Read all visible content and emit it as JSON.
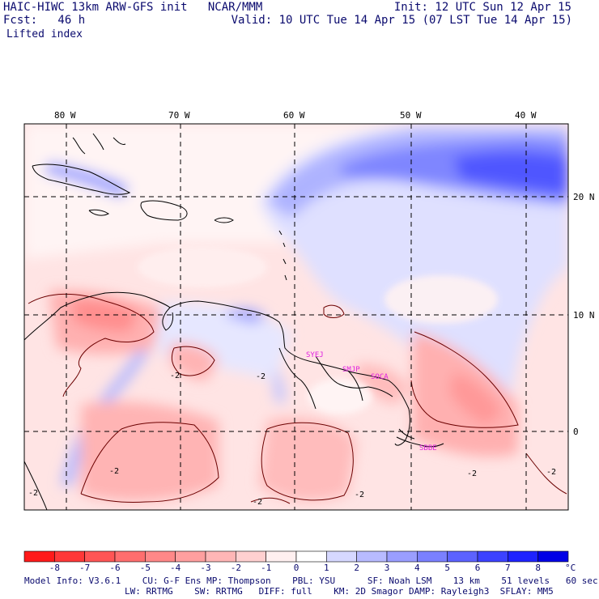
{
  "header": {
    "left_line1": "HAIC-HIWC 13km ARW-GFS init   NCAR/MMM",
    "left_line2": "Fcst:   46 h",
    "left_line3": "Lifted index",
    "right_line1": "Init: 12 UTC Sun 12 Apr 15",
    "right_line2": "Valid: 10 UTC Tue 14 Apr 15 (07 LST Tue 14 Apr 15)"
  },
  "map": {
    "lon_labels": [
      "80 W",
      "70 W",
      "60 W",
      "50 W",
      "40 W"
    ],
    "lat_labels": [
      "20 N",
      "10 N",
      "0"
    ],
    "station_labels": [
      "SYEJ",
      "SMJP",
      "SOCA",
      "SBBE"
    ],
    "contour_labels": [
      "-2",
      "-2",
      "-2",
      "-2",
      "-2",
      "-2",
      "-2",
      "-2"
    ],
    "station_color": "#e020e0"
  },
  "colorbar": {
    "labels": [
      "-8",
      "-7",
      "-6",
      "-5",
      "-4",
      "-3",
      "-2",
      "-1",
      "0",
      "1",
      "2",
      "3",
      "4",
      "5",
      "6",
      "7",
      "8"
    ],
    "unit": "°C",
    "colors": [
      "#ff1a1a",
      "#ff3838",
      "#ff5555",
      "#ff6e6e",
      "#ff8888",
      "#ff9f9f",
      "#ffb6b6",
      "#ffd0d0",
      "#fff0f0",
      "#ffffff",
      "#d6d8ff",
      "#b8bbff",
      "#9a9eff",
      "#7a80ff",
      "#5c62ff",
      "#3c42ff",
      "#1e22ff",
      "#0000e6"
    ]
  },
  "footer": {
    "line1": "Model Info: V3.6.1    CU: G-F Ens MP: Thompson    PBL: YSU      SF: Noah LSM    13 km    51 levels   60 sec",
    "line2": "LW: RRTMG    SW: RRTMG   DIFF: full    KM: 2D Smagor DAMP: Rayleigh3  SFLAY: MM5"
  }
}
